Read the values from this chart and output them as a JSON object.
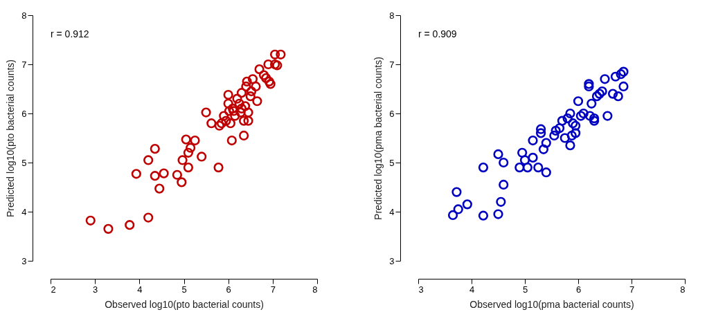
{
  "chart_data": [
    {
      "type": "scatter",
      "xlabel": "Observed log10(pto bacterial counts)",
      "ylabel": "Predicted log10(pto bacterial counts)",
      "annotations": [
        "r = 0.912"
      ],
      "xlim": [
        2,
        8
      ],
      "ylim": [
        3,
        8
      ],
      "xticks": [
        2,
        3,
        4,
        5,
        6,
        7,
        8
      ],
      "yticks": [
        3,
        4,
        5,
        6,
        7,
        8
      ],
      "grid": false,
      "marker": "circle",
      "series": [
        {
          "color": "#c00000",
          "x": [
            2.9,
            3.3,
            3.78,
            4.2,
            3.93,
            4.2,
            4.35,
            4.35,
            4.45,
            4.55,
            4.85,
            4.95,
            4.97,
            5.05,
            5.1,
            5.1,
            5.15,
            5.25,
            5.4,
            5.5,
            5.62,
            5.78,
            5.8,
            5.85,
            5.9,
            5.95,
            6.0,
            6.0,
            6.02,
            6.05,
            6.08,
            6.1,
            6.12,
            6.15,
            6.2,
            6.25,
            6.28,
            6.3,
            6.3,
            6.35,
            6.35,
            6.38,
            6.4,
            6.42,
            6.45,
            6.45,
            6.5,
            6.52,
            6.55,
            6.62,
            6.65,
            6.7,
            6.8,
            6.85,
            6.9,
            6.92,
            6.95,
            7.05,
            7.05,
            7.1,
            7.18
          ],
          "values": [
            3.82,
            3.65,
            3.73,
            3.88,
            4.77,
            5.05,
            5.28,
            4.73,
            4.47,
            4.78,
            4.75,
            4.6,
            5.05,
            5.47,
            4.9,
            5.2,
            5.3,
            5.45,
            5.12,
            6.02,
            5.8,
            4.9,
            5.75,
            5.8,
            5.95,
            5.85,
            6.2,
            6.38,
            6.05,
            5.8,
            5.45,
            6.1,
            6.05,
            5.95,
            6.3,
            6.2,
            6.02,
            6.1,
            6.42,
            5.85,
            5.55,
            6.15,
            6.55,
            6.65,
            6.02,
            5.85,
            6.35,
            6.45,
            6.7,
            6.55,
            6.25,
            6.9,
            6.78,
            6.72,
            7.0,
            6.65,
            6.6,
            7.0,
            7.2,
            6.98,
            7.2
          ]
        }
      ]
    },
    {
      "type": "scatter",
      "xlabel": "Observed log10(pma bacterial counts)",
      "ylabel": "Predicted log10(pma bacterial counts)",
      "annotations": [
        "r = 0.909"
      ],
      "xlim": [
        3,
        8
      ],
      "ylim": [
        3,
        8
      ],
      "xticks": [
        3,
        4,
        5,
        6,
        7,
        8
      ],
      "yticks": [
        3,
        4,
        5,
        6,
        7,
        8
      ],
      "grid": false,
      "marker": "circle",
      "series": [
        {
          "color": "#0000c0",
          "x": [
            3.65,
            3.75,
            3.72,
            3.92,
            4.22,
            4.22,
            4.5,
            4.5,
            4.55,
            4.6,
            4.6,
            4.9,
            4.95,
            5.0,
            5.05,
            5.15,
            5.15,
            5.25,
            5.3,
            5.3,
            5.35,
            5.4,
            5.4,
            5.55,
            5.58,
            5.65,
            5.7,
            5.75,
            5.8,
            5.85,
            5.85,
            5.88,
            5.9,
            5.95,
            5.95,
            6.0,
            6.05,
            6.1,
            6.2,
            6.2,
            6.22,
            6.25,
            6.3,
            6.3,
            6.35,
            6.4,
            6.45,
            6.5,
            6.55,
            6.65,
            6.7,
            6.75,
            6.8,
            6.85,
            6.85
          ],
          "values": [
            3.93,
            4.05,
            4.4,
            4.15,
            4.9,
            3.92,
            3.95,
            5.17,
            4.2,
            5.0,
            4.55,
            4.9,
            5.2,
            5.05,
            4.9,
            5.1,
            5.45,
            4.9,
            5.68,
            5.6,
            5.27,
            5.4,
            4.8,
            5.55,
            5.65,
            5.7,
            5.85,
            5.5,
            5.9,
            5.35,
            6.0,
            5.55,
            5.8,
            5.6,
            5.75,
            6.25,
            5.95,
            6.0,
            6.55,
            6.6,
            5.95,
            6.2,
            5.9,
            5.85,
            6.35,
            6.4,
            6.45,
            6.7,
            5.95,
            6.4,
            6.75,
            6.35,
            6.8,
            6.55,
            6.85
          ]
        }
      ]
    }
  ]
}
